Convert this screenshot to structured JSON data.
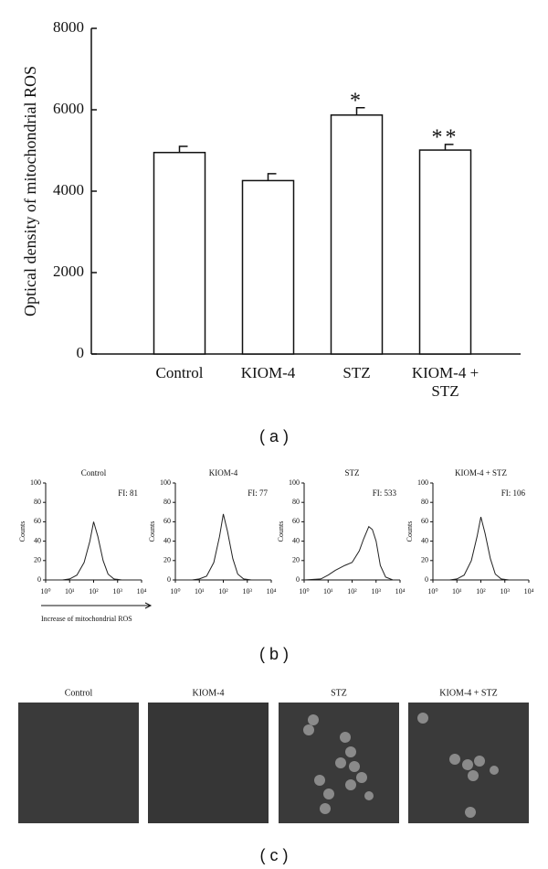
{
  "chart_data": [
    {
      "type": "bar",
      "ylabel": "Optical density of mitochondrial ROS",
      "categories": [
        "Control",
        "KIOM-4",
        "STZ",
        "KIOM-4 + STZ"
      ],
      "values": [
        4950,
        4260,
        5870,
        5010
      ],
      "errors": [
        150,
        170,
        180,
        140
      ],
      "annotations": [
        {
          "text": "*",
          "x": "STZ"
        },
        {
          "text": "**",
          "x": "KIOM-4 + STZ"
        }
      ],
      "color": "#ffffff",
      "ylim": [
        0,
        8000
      ],
      "yticks": [
        0,
        2000,
        4000,
        6000,
        8000
      ]
    },
    {
      "type": "line",
      "title": "Control",
      "annotation": "FI: 81",
      "ylabel": "Counts",
      "xlabel": "Increase of mitochondrial ROS",
      "xscale": "log",
      "color": "#222222",
      "x": [
        1,
        5,
        10,
        20,
        40,
        70,
        100,
        150,
        250,
        400,
        700,
        1500,
        10000
      ],
      "values": [
        0,
        0,
        1,
        5,
        18,
        40,
        60,
        45,
        20,
        6,
        1,
        0,
        0
      ],
      "xlim": [
        1,
        10000
      ],
      "xticks": [
        {
          "value": 1,
          "label": "10⁰"
        },
        {
          "value": 10,
          "label": "10¹"
        },
        {
          "value": 100,
          "label": "10²"
        },
        {
          "value": 1000,
          "label": "10³"
        },
        {
          "value": 10000,
          "label": "10⁴"
        }
      ],
      "ylim": [
        0,
        100
      ],
      "yticks": [
        0,
        20,
        40,
        60,
        80,
        100
      ]
    },
    {
      "type": "line",
      "title": "KIOM-4",
      "annotation": "FI: 77",
      "ylabel": "Counts",
      "xscale": "log",
      "color": "#222222",
      "x": [
        1,
        5,
        10,
        20,
        40,
        70,
        100,
        150,
        250,
        400,
        700,
        1500,
        10000
      ],
      "values": [
        0,
        0,
        1,
        4,
        18,
        45,
        68,
        50,
        22,
        6,
        1,
        0,
        0
      ],
      "xlim": [
        1,
        10000
      ],
      "xticks": [
        {
          "value": 1,
          "label": "10⁰"
        },
        {
          "value": 10,
          "label": "10¹"
        },
        {
          "value": 100,
          "label": "10²"
        },
        {
          "value": 1000,
          "label": "10³"
        },
        {
          "value": 10000,
          "label": "10⁴"
        }
      ],
      "ylim": [
        0,
        100
      ],
      "yticks": [
        0,
        20,
        40,
        60,
        80,
        100
      ]
    },
    {
      "type": "line",
      "title": "STZ",
      "annotation": "FI: 533",
      "ylabel": "Counts",
      "xscale": "log",
      "color": "#222222",
      "x": [
        1,
        5,
        10,
        20,
        50,
        100,
        200,
        300,
        500,
        700,
        1000,
        1500,
        2500,
        5000,
        10000
      ],
      "values": [
        0,
        1,
        5,
        10,
        15,
        18,
        30,
        42,
        55,
        52,
        40,
        15,
        3,
        0,
        0
      ],
      "xlim": [
        1,
        10000
      ],
      "xticks": [
        {
          "value": 1,
          "label": "10⁰"
        },
        {
          "value": 10,
          "label": "10¹"
        },
        {
          "value": 100,
          "label": "10²"
        },
        {
          "value": 1000,
          "label": "10³"
        },
        {
          "value": 10000,
          "label": "10⁴"
        }
      ],
      "ylim": [
        0,
        100
      ],
      "yticks": [
        0,
        20,
        40,
        60,
        80,
        100
      ]
    },
    {
      "type": "line",
      "title": "KIOM-4 + STZ",
      "annotation": "FI: 106",
      "ylabel": "Counts",
      "xscale": "log",
      "color": "#222222",
      "x": [
        1,
        5,
        10,
        20,
        40,
        70,
        100,
        150,
        250,
        400,
        700,
        1500,
        10000
      ],
      "values": [
        0,
        0,
        1,
        5,
        20,
        45,
        65,
        48,
        22,
        6,
        1,
        0,
        0
      ],
      "xlim": [
        1,
        10000
      ],
      "xticks": [
        {
          "value": 1,
          "label": "10⁰"
        },
        {
          "value": 10,
          "label": "10¹"
        },
        {
          "value": 100,
          "label": "10²"
        },
        {
          "value": 1000,
          "label": "10³"
        },
        {
          "value": 10000,
          "label": "10⁴"
        }
      ],
      "ylim": [
        0,
        100
      ],
      "yticks": [
        0,
        20,
        40,
        60,
        80,
        100
      ]
    }
  ],
  "panels": [
    "( a )",
    "( b )",
    "( c )"
  ],
  "images": {
    "titles": [
      "Control",
      "KIOM-4",
      "STZ",
      "KIOM-4 + STZ"
    ]
  }
}
